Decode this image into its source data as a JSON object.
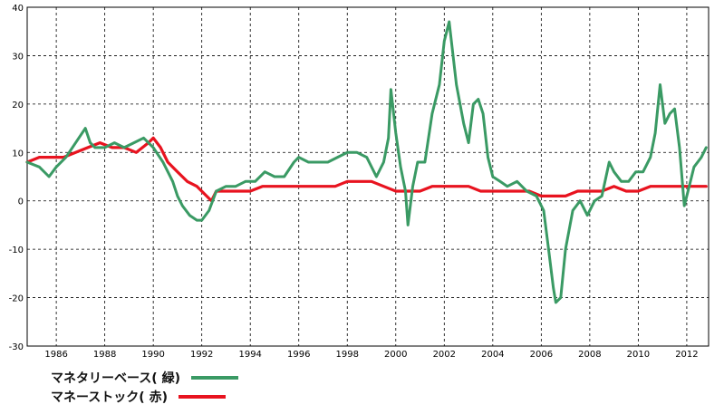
{
  "chart_data": {
    "type": "line",
    "title": "",
    "xlabel": "",
    "ylabel": "",
    "xlim": [
      1984.8,
      2012.9
    ],
    "ylim": [
      -30,
      40
    ],
    "x_ticks": [
      "1986",
      "1988",
      "1990",
      "1992",
      "1994",
      "1996",
      "1998",
      "2000",
      "2002",
      "2004",
      "2006",
      "2008",
      "2010",
      "2012"
    ],
    "y_ticks": [
      "40",
      "30",
      "20",
      "10",
      "0",
      "-10",
      "-20",
      "-30"
    ],
    "grid": true,
    "legend_position": "bottom-left",
    "series": [
      {
        "name": "マネタリーベース( 緑)",
        "color": "#3a9a64",
        "x": [
          1984.8,
          1985.3,
          1985.7,
          1986.0,
          1986.4,
          1986.8,
          1987.2,
          1987.4,
          1987.6,
          1988.0,
          1988.4,
          1988.8,
          1989.2,
          1989.6,
          1990.0,
          1990.4,
          1990.8,
          1991.0,
          1991.2,
          1991.5,
          1991.8,
          1992.0,
          1992.3,
          1992.6,
          1993.0,
          1993.4,
          1993.8,
          1994.2,
          1994.6,
          1995.0,
          1995.4,
          1995.8,
          1996.0,
          1996.4,
          1996.8,
          1997.2,
          1997.6,
          1998.0,
          1998.4,
          1998.8,
          1999.2,
          1999.5,
          1999.7,
          1999.8,
          2000.0,
          2000.2,
          2000.4,
          2000.5,
          2000.7,
          2000.9,
          2001.2,
          2001.5,
          2001.8,
          2002.0,
          2002.2,
          2002.5,
          2002.8,
          2003.0,
          2003.2,
          2003.4,
          2003.6,
          2003.8,
          2004.0,
          2004.3,
          2004.6,
          2005.0,
          2005.4,
          2005.8,
          2006.1,
          2006.3,
          2006.5,
          2006.6,
          2006.8,
          2007.0,
          2007.3,
          2007.6,
          2007.9,
          2008.2,
          2008.5,
          2008.8,
          2009.0,
          2009.3,
          2009.6,
          2009.9,
          2010.2,
          2010.5,
          2010.7,
          2010.9,
          2011.1,
          2011.3,
          2011.5,
          2011.7,
          2011.9,
          2012.1,
          2012.3,
          2012.6,
          2012.8
        ],
        "y": [
          8,
          7,
          5,
          7,
          9,
          12,
          15,
          12,
          11,
          11,
          12,
          11,
          12,
          13,
          11,
          8,
          4,
          1,
          -1,
          -3,
          -4,
          -4,
          -2,
          2,
          3,
          3,
          4,
          4,
          6,
          5,
          5,
          8,
          9,
          8,
          8,
          8,
          9,
          10,
          10,
          9,
          5,
          8,
          13,
          23,
          14,
          7,
          2,
          -5,
          3,
          8,
          8,
          18,
          24,
          33,
          37,
          24,
          16,
          12,
          20,
          21,
          18,
          9,
          5,
          4,
          3,
          4,
          2,
          1,
          -2,
          -10,
          -18,
          -21,
          -20,
          -10,
          -2,
          0,
          -3,
          0,
          1,
          8,
          6,
          4,
          4,
          6,
          6,
          9,
          14,
          24,
          16,
          18,
          19,
          11,
          -1,
          3,
          7,
          9,
          11
        ]
      },
      {
        "name": "マネーストック( 赤)",
        "color": "#e8131f",
        "x": [
          1984.8,
          1985.3,
          1985.8,
          1986.3,
          1986.8,
          1987.3,
          1987.8,
          1988.3,
          1988.8,
          1989.3,
          1989.8,
          1990.0,
          1990.3,
          1990.6,
          1991.0,
          1991.4,
          1991.8,
          1992.2,
          1992.4,
          1992.6,
          1993.0,
          1993.5,
          1994.0,
          1994.5,
          1995.0,
          1995.5,
          1996.0,
          1996.5,
          1997.0,
          1997.5,
          1998.0,
          1998.5,
          1999.0,
          1999.5,
          2000.0,
          2000.5,
          2001.0,
          2001.5,
          2002.0,
          2002.5,
          2003.0,
          2003.5,
          2004.0,
          2004.5,
          2005.0,
          2005.5,
          2006.0,
          2006.5,
          2007.0,
          2007.5,
          2008.0,
          2008.5,
          2009.0,
          2009.5,
          2010.0,
          2010.5,
          2011.0,
          2011.5,
          2012.0,
          2012.5,
          2012.8
        ],
        "y": [
          8,
          9,
          9,
          9,
          10,
          11,
          12,
          11,
          11,
          10,
          12,
          13,
          11,
          8,
          6,
          4,
          3,
          1,
          0,
          2,
          2,
          2,
          2,
          3,
          3,
          3,
          3,
          3,
          3,
          3,
          4,
          4,
          4,
          3,
          2,
          2,
          2,
          3,
          3,
          3,
          3,
          2,
          2,
          2,
          2,
          2,
          1,
          1,
          1,
          2,
          2,
          2,
          3,
          2,
          2,
          3,
          3,
          3,
          3,
          3,
          3
        ]
      }
    ]
  },
  "legend": {
    "items": [
      {
        "label": "マネタリーベース( 緑)",
        "color": "#3a9a64"
      },
      {
        "label": "マネーストック( 赤)",
        "color": "#e8131f"
      }
    ]
  }
}
